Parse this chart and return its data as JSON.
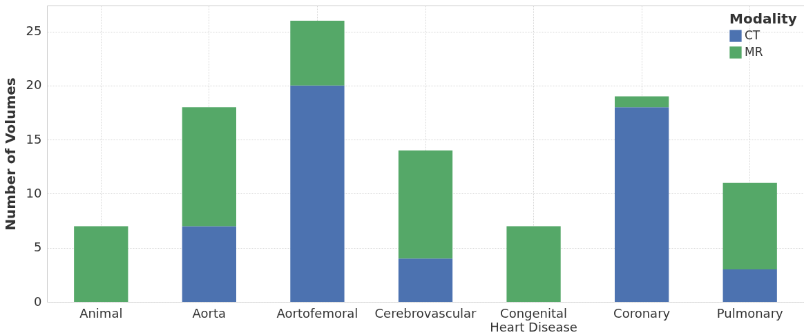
{
  "chart_data": {
    "type": "bar",
    "stacked": true,
    "ylabel": "Number of Volumes",
    "legend_title": "Modality",
    "legend": "top right",
    "grid": true,
    "categories": [
      "Animal",
      "Aorta",
      "Aortofemoral",
      "Cerebrovascular",
      "Congenital Heart Disease",
      "Coronary",
      "Pulmonary"
    ],
    "series": [
      {
        "name": "CT",
        "color": "#4c72b0",
        "values": [
          0,
          7,
          20,
          4,
          0,
          18,
          3
        ]
      },
      {
        "name": "MR",
        "color": "#55a868",
        "values": [
          7,
          11,
          6,
          10,
          7,
          1,
          8
        ]
      }
    ],
    "ylim": [
      0,
      27.4
    ],
    "yticks": [
      0,
      5,
      10,
      15,
      20,
      25
    ]
  }
}
